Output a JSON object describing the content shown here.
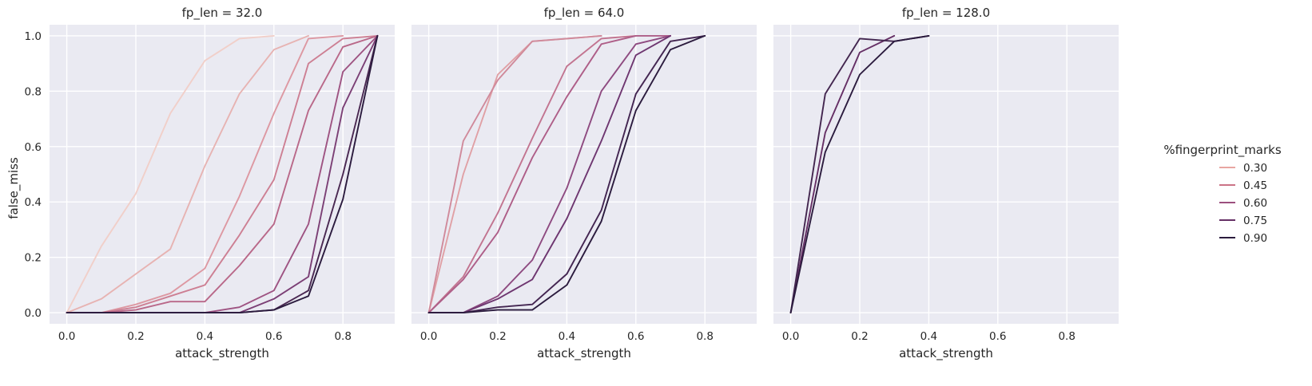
{
  "chart_data": {
    "type": "line",
    "facet_variable": "fp_len",
    "xlabel": "attack_strength",
    "ylabel": "false_miss",
    "xlim": [
      -0.05,
      0.95
    ],
    "ylim": [
      -0.04,
      1.04
    ],
    "xticks": [
      "0.0",
      "0.2",
      "0.4",
      "0.6",
      "0.8"
    ],
    "yticks": [
      "0.0",
      "0.2",
      "0.4",
      "0.6",
      "0.8",
      "1.0"
    ],
    "grid": true,
    "legend": {
      "title": "%fingerprint_marks",
      "placement": "right",
      "entries": [
        {
          "label": "0.30",
          "color": "#e8a6a1"
        },
        {
          "label": "0.45",
          "color": "#cb7386"
        },
        {
          "label": "0.60",
          "color": "#9c4f7e"
        },
        {
          "label": "0.75",
          "color": "#652f65"
        },
        {
          "label": "0.90",
          "color": "#2b1b3e"
        }
      ]
    },
    "panels": [
      {
        "title": "fp_len = 32.0",
        "series": [
          {
            "color": "#f1cfc9",
            "x": [
              0.0,
              0.1,
              0.2,
              0.3,
              0.4,
              0.5,
              0.6
            ],
            "y": [
              0.0,
              0.24,
              0.43,
              0.72,
              0.91,
              0.99,
              1.0
            ]
          },
          {
            "color": "#e7b3b2",
            "x": [
              0.0,
              0.1,
              0.2,
              0.3,
              0.4,
              0.5,
              0.6,
              0.7
            ],
            "y": [
              0.0,
              0.05,
              0.14,
              0.23,
              0.53,
              0.79,
              0.95,
              1.0
            ]
          },
          {
            "color": "#dd98a2",
            "x": [
              0.0,
              0.1,
              0.2,
              0.3,
              0.4,
              0.5,
              0.6,
              0.7,
              0.8
            ],
            "y": [
              0.0,
              0.0,
              0.03,
              0.07,
              0.16,
              0.42,
              0.72,
              0.99,
              1.0
            ]
          },
          {
            "color": "#cd7f93",
            "x": [
              0.0,
              0.1,
              0.2,
              0.3,
              0.4,
              0.5,
              0.6,
              0.7,
              0.8,
              0.9
            ],
            "y": [
              0.0,
              0.0,
              0.02,
              0.06,
              0.1,
              0.28,
              0.48,
              0.9,
              0.99,
              1.0
            ]
          },
          {
            "color": "#b96889",
            "x": [
              0.0,
              0.1,
              0.2,
              0.3,
              0.4,
              0.5,
              0.6,
              0.7,
              0.8,
              0.9
            ],
            "y": [
              0.0,
              0.0,
              0.01,
              0.04,
              0.04,
              0.17,
              0.32,
              0.73,
              0.96,
              1.0
            ]
          },
          {
            "color": "#9e5382",
            "x": [
              0.0,
              0.1,
              0.2,
              0.3,
              0.4,
              0.5,
              0.6,
              0.7,
              0.8,
              0.9
            ],
            "y": [
              0.0,
              0.0,
              0.0,
              0.0,
              0.0,
              0.02,
              0.08,
              0.32,
              0.87,
              1.0
            ]
          },
          {
            "color": "#7b3f75",
            "x": [
              0.0,
              0.1,
              0.2,
              0.3,
              0.4,
              0.5,
              0.6,
              0.7,
              0.8,
              0.9
            ],
            "y": [
              0.0,
              0.0,
              0.0,
              0.0,
              0.0,
              0.0,
              0.05,
              0.13,
              0.74,
              1.0
            ]
          },
          {
            "color": "#4a2852",
            "x": [
              0.0,
              0.1,
              0.2,
              0.3,
              0.4,
              0.5,
              0.6,
              0.7,
              0.8,
              0.9
            ],
            "y": [
              0.0,
              0.0,
              0.0,
              0.0,
              0.0,
              0.0,
              0.01,
              0.08,
              0.5,
              1.0
            ]
          },
          {
            "color": "#2b1b3e",
            "x": [
              0.0,
              0.1,
              0.2,
              0.3,
              0.4,
              0.5,
              0.6,
              0.7,
              0.8,
              0.9
            ],
            "y": [
              0.0,
              0.0,
              0.0,
              0.0,
              0.0,
              0.0,
              0.01,
              0.06,
              0.41,
              1.0
            ]
          }
        ]
      },
      {
        "title": "fp_len = 64.0",
        "series": [
          {
            "color": "#e0a0a5",
            "x": [
              0.0,
              0.1,
              0.2,
              0.3,
              0.4,
              0.5
            ],
            "y": [
              0.0,
              0.5,
              0.86,
              0.98,
              0.99,
              1.0
            ]
          },
          {
            "color": "#d08a9b",
            "x": [
              0.0,
              0.1,
              0.2,
              0.3,
              0.4,
              0.5
            ],
            "y": [
              0.0,
              0.62,
              0.84,
              0.98,
              0.99,
              1.0
            ]
          },
          {
            "color": "#c27490",
            "x": [
              0.0,
              0.1,
              0.2,
              0.3,
              0.4,
              0.5,
              0.6
            ],
            "y": [
              0.0,
              0.13,
              0.36,
              0.63,
              0.89,
              0.99,
              1.0
            ]
          },
          {
            "color": "#ae5e88",
            "x": [
              0.0,
              0.1,
              0.2,
              0.3,
              0.4,
              0.5,
              0.6,
              0.7
            ],
            "y": [
              0.0,
              0.12,
              0.29,
              0.56,
              0.78,
              0.97,
              1.0,
              1.0
            ]
          },
          {
            "color": "#8e4a80",
            "x": [
              0.0,
              0.1,
              0.2,
              0.3,
              0.4,
              0.5,
              0.6,
              0.7
            ],
            "y": [
              0.0,
              0.0,
              0.06,
              0.19,
              0.45,
              0.8,
              0.97,
              1.0
            ]
          },
          {
            "color": "#6e3670",
            "x": [
              0.0,
              0.1,
              0.2,
              0.3,
              0.4,
              0.5,
              0.6,
              0.7
            ],
            "y": [
              0.0,
              0.0,
              0.05,
              0.12,
              0.34,
              0.62,
              0.93,
              1.0
            ]
          },
          {
            "color": "#432551",
            "x": [
              0.0,
              0.1,
              0.2,
              0.3,
              0.4,
              0.5,
              0.6,
              0.7,
              0.8
            ],
            "y": [
              0.0,
              0.0,
              0.02,
              0.03,
              0.14,
              0.37,
              0.79,
              0.98,
              1.0
            ]
          },
          {
            "color": "#2b1b3e",
            "x": [
              0.0,
              0.1,
              0.2,
              0.3,
              0.4,
              0.5,
              0.6,
              0.7,
              0.8
            ],
            "y": [
              0.0,
              0.0,
              0.01,
              0.01,
              0.1,
              0.33,
              0.73,
              0.95,
              1.0
            ]
          }
        ]
      },
      {
        "title": "fp_len = 128.0",
        "series": [
          {
            "color": "#652f65",
            "x": [
              0.0,
              0.1,
              0.2,
              0.3
            ],
            "y": [
              0.0,
              0.65,
              0.94,
              1.0
            ]
          },
          {
            "color": "#43264f",
            "x": [
              0.0,
              0.1,
              0.2,
              0.3,
              0.4
            ],
            "y": [
              0.0,
              0.79,
              0.99,
              0.98,
              1.0
            ]
          },
          {
            "color": "#2b1b3e",
            "x": [
              0.0,
              0.1,
              0.2,
              0.3,
              0.4
            ],
            "y": [
              0.0,
              0.58,
              0.86,
              0.98,
              1.0
            ]
          }
        ]
      }
    ]
  }
}
